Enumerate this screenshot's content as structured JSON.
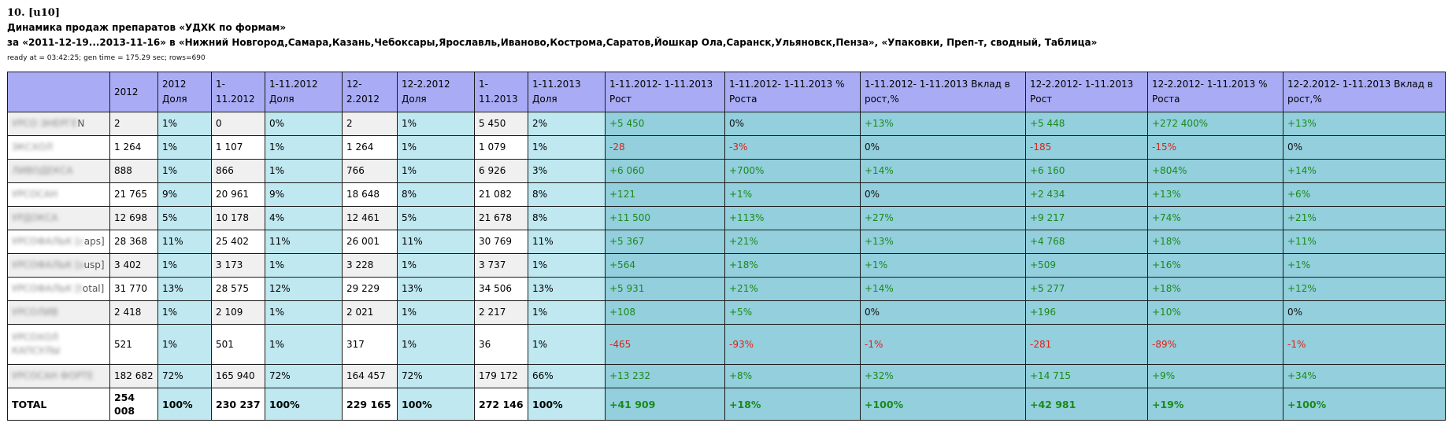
{
  "header": {
    "number": "10. [u10]",
    "title": "Динамика продаж препаратов «УДХК по формам»",
    "subtitle": "за «2011-12-19...2013-11-16» в «Нижний Новгород,Самара,Казань,Чебоксары,Ярославль,Иваново,Кострома,Саратов,Йошкар Ола,Саранск,Ульяновск,Пенза», «Упаковки, Преп-т, сводный, Таблица»",
    "meta": "ready at = 03:42:25; gen time = 175.29 sec; rows=690"
  },
  "columns": [
    {
      "line1": "",
      "line2": ""
    },
    {
      "line1": "2012",
      "line2": ""
    },
    {
      "line1": "2012",
      "line2": "Доля"
    },
    {
      "line1": "1-11.2012",
      "line2": ""
    },
    {
      "line1": "1-11.2012",
      "line2": "Доля"
    },
    {
      "line1": "12-2.2012",
      "line2": ""
    },
    {
      "line1": "12-2.2012",
      "line2": "Доля"
    },
    {
      "line1": "1-11.2013",
      "line2": ""
    },
    {
      "line1": "1-11.2013",
      "line2": "Доля"
    },
    {
      "line1": "1-11.2012- 1-11.2013",
      "line2": "Рост"
    },
    {
      "line1": "1-11.2012- 1-11.2013 %",
      "line2": "Роста"
    },
    {
      "line1": "1-11.2012- 1-11.2013 Вклад в",
      "line2": "рост,%"
    },
    {
      "line1": "12-2.2012- 1-11.2013",
      "line2": "Рост"
    },
    {
      "line1": "12-2.2012- 1-11.2013 %",
      "line2": "Роста"
    },
    {
      "line1": "12-2.2012- 1-11.2013 Вклад в",
      "line2": "рост,%"
    }
  ],
  "rows": [
    {
      "name_hidden": "УРСО ЭНЕРГЕ",
      "name_visible": "N",
      "cells": [
        "2",
        "1%",
        "0",
        "0%",
        "2",
        "1%",
        "5 450",
        "2%",
        "+5 450",
        "0%",
        "+13%",
        "+5 448",
        "+272 400%",
        "+13%"
      ]
    },
    {
      "name_hidden": "ЭКСХОЛ",
      "name_visible": "",
      "cells": [
        "1 264",
        "1%",
        "1 107",
        "1%",
        "1 264",
        "1%",
        "1 079",
        "1%",
        "-28",
        "-3%",
        "0%",
        "-185",
        "-15%",
        "0%"
      ]
    },
    {
      "name_hidden": "ЛИВОДЕКСА",
      "name_visible": "",
      "cells": [
        "888",
        "1%",
        "866",
        "1%",
        "766",
        "1%",
        "6 926",
        "3%",
        "+6 060",
        "+700%",
        "+14%",
        "+6 160",
        "+804%",
        "+14%"
      ]
    },
    {
      "name_hidden": "УРСОСАН",
      "name_visible": "",
      "cells": [
        "21 765",
        "9%",
        "20 961",
        "9%",
        "18 648",
        "8%",
        "21 082",
        "8%",
        "+121",
        "+1%",
        "0%",
        "+2 434",
        "+13%",
        "+6%"
      ]
    },
    {
      "name_hidden": "УРДОКСА",
      "name_visible": "",
      "cells": [
        "12 698",
        "5%",
        "10 178",
        "4%",
        "12 461",
        "5%",
        "21 678",
        "8%",
        "+11 500",
        "+113%",
        "+27%",
        "+9 217",
        "+74%",
        "+21%"
      ]
    },
    {
      "name_hidden": "УРСОФАЛЬК [c",
      "name_visible": "aps]",
      "cells": [
        "28 368",
        "11%",
        "25 402",
        "11%",
        "26 001",
        "11%",
        "30 769",
        "11%",
        "+5 367",
        "+21%",
        "+13%",
        "+4 768",
        "+18%",
        "+11%"
      ]
    },
    {
      "name_hidden": "УРСОФАЛЬК [s",
      "name_visible": "usp]",
      "cells": [
        "3 402",
        "1%",
        "3 173",
        "1%",
        "3 228",
        "1%",
        "3 737",
        "1%",
        "+564",
        "+18%",
        "+1%",
        "+509",
        "+16%",
        "+1%"
      ]
    },
    {
      "name_hidden": "УРСОФАЛЬК [t",
      "name_visible": "otal]",
      "cells": [
        "31 770",
        "13%",
        "28 575",
        "12%",
        "29 229",
        "13%",
        "34 506",
        "13%",
        "+5 931",
        "+21%",
        "+14%",
        "+5 277",
        "+18%",
        "+12%"
      ]
    },
    {
      "name_hidden": "УРСОЛИВ",
      "name_visible": "",
      "cells": [
        "2 418",
        "1%",
        "2 109",
        "1%",
        "2 021",
        "1%",
        "2 217",
        "1%",
        "+108",
        "+5%",
        "0%",
        "+196",
        "+10%",
        "0%"
      ]
    },
    {
      "name_hidden": "УРСОХОЛ КАПСУЛЫ",
      "name_visible": "",
      "tall": true,
      "cells": [
        "521",
        "1%",
        "501",
        "1%",
        "317",
        "1%",
        "36",
        "1%",
        "-465",
        "-93%",
        "-1%",
        "-281",
        "-89%",
        "-1%"
      ]
    },
    {
      "name_hidden": "УРСОСАН ФОРТЕ",
      "name_visible": "",
      "cells": [
        "182 682",
        "72%",
        "165 940",
        "72%",
        "164 457",
        "72%",
        "179 172",
        "66%",
        "+13 232",
        "+8%",
        "+32%",
        "+14 715",
        "+9%",
        "+34%"
      ]
    }
  ],
  "total": {
    "name": "TOTAL",
    "cells": [
      "254 008",
      "100%",
      "230 237",
      "100%",
      "229 165",
      "100%",
      "272 146",
      "100%",
      "+41 909",
      "+18%",
      "+100%",
      "+42 981",
      "+19%",
      "+100%"
    ]
  }
}
